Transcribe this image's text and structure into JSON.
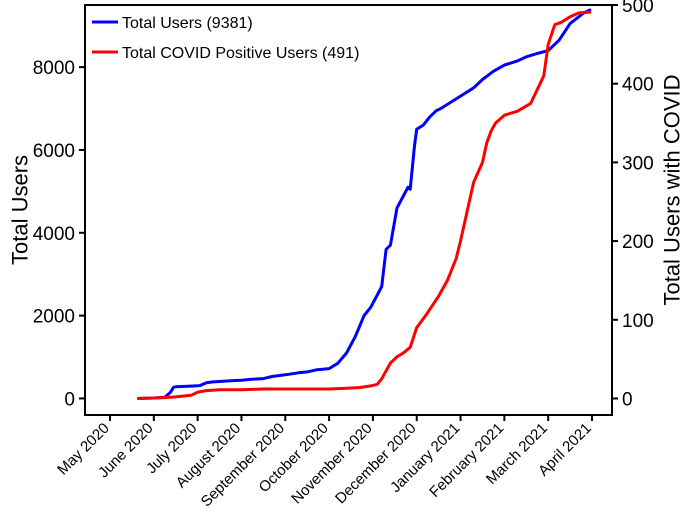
{
  "chart_data": {
    "type": "line",
    "title": "",
    "xlabel": "",
    "ylabel": "Total Users",
    "ylabel_right": "Total Users with COVID",
    "x_tick_labels": [
      "May 2020",
      "June 2020",
      "July 2020",
      "August 2020",
      "September 2020",
      "October 2020",
      "November 2020",
      "December 2020",
      "January 2021",
      "February 2021",
      "March 2021",
      "April 2021"
    ],
    "x_range_months": [
      0,
      11
    ],
    "ylim": [
      -400,
      9500
    ],
    "ylim_right": [
      -21,
      500
    ],
    "y_ticks": [
      0,
      2000,
      4000,
      6000,
      8000
    ],
    "y_ticks_right": [
      0,
      100,
      200,
      300,
      400,
      500
    ],
    "legend_position": "top-left",
    "grid": false,
    "series": [
      {
        "name": "Total Users (9381)",
        "label": "Total Users (9381)",
        "color": "#0000ff",
        "axis": "left",
        "x": [
          0.65,
          1.0,
          1.25,
          1.38,
          1.45,
          1.5,
          1.9,
          2.05,
          2.2,
          2.35,
          2.5,
          2.8,
          3.0,
          3.2,
          3.5,
          3.7,
          4.0,
          4.3,
          4.5,
          4.7,
          5.0,
          5.2,
          5.4,
          5.6,
          5.8,
          5.95,
          6.1,
          6.2,
          6.3,
          6.4,
          6.5,
          6.55,
          6.7,
          6.8,
          6.85,
          6.95,
          7.0,
          7.15,
          7.3,
          7.45,
          7.55,
          7.7,
          8.0,
          8.3,
          8.5,
          8.75,
          9.0,
          9.3,
          9.5,
          9.75,
          10.0,
          10.25,
          10.5,
          10.8,
          10.95
        ],
        "values": [
          0,
          10,
          30,
          150,
          270,
          280,
          300,
          310,
          380,
          400,
          410,
          430,
          440,
          460,
          480,
          530,
          570,
          620,
          640,
          690,
          720,
          850,
          1100,
          1500,
          2000,
          2200,
          2500,
          2700,
          3600,
          3700,
          4300,
          4600,
          4900,
          5100,
          5050,
          6100,
          6500,
          6600,
          6800,
          6950,
          7000,
          7100,
          7300,
          7500,
          7700,
          7900,
          8050,
          8150,
          8250,
          8330,
          8400,
          8650,
          9050,
          9300,
          9381
        ]
      },
      {
        "name": "Total COVID Positive Users (491)",
        "label": "Total COVID Positive Users (491)",
        "color": "#ff0000",
        "axis": "right",
        "x": [
          0.65,
          1.2,
          1.5,
          1.85,
          2.0,
          2.2,
          2.5,
          3.0,
          3.5,
          4.0,
          4.5,
          5.0,
          5.4,
          5.7,
          5.95,
          6.1,
          6.2,
          6.3,
          6.4,
          6.55,
          6.7,
          6.85,
          7.0,
          7.2,
          7.5,
          7.7,
          7.9,
          8.0,
          8.2,
          8.3,
          8.5,
          8.6,
          8.7,
          8.8,
          8.9,
          9.0,
          9.3,
          9.6,
          9.9,
          10.0,
          10.15,
          10.3,
          10.5,
          10.7,
          10.95
        ],
        "values": [
          0,
          1,
          2,
          4,
          8,
          10,
          11,
          11,
          12,
          12,
          12,
          12,
          13,
          14,
          16,
          18,
          25,
          35,
          45,
          53,
          58,
          65,
          90,
          105,
          130,
          150,
          178,
          200,
          250,
          275,
          300,
          325,
          340,
          350,
          355,
          360,
          365,
          375,
          410,
          450,
          475,
          478,
          485,
          490,
          491
        ]
      }
    ]
  }
}
